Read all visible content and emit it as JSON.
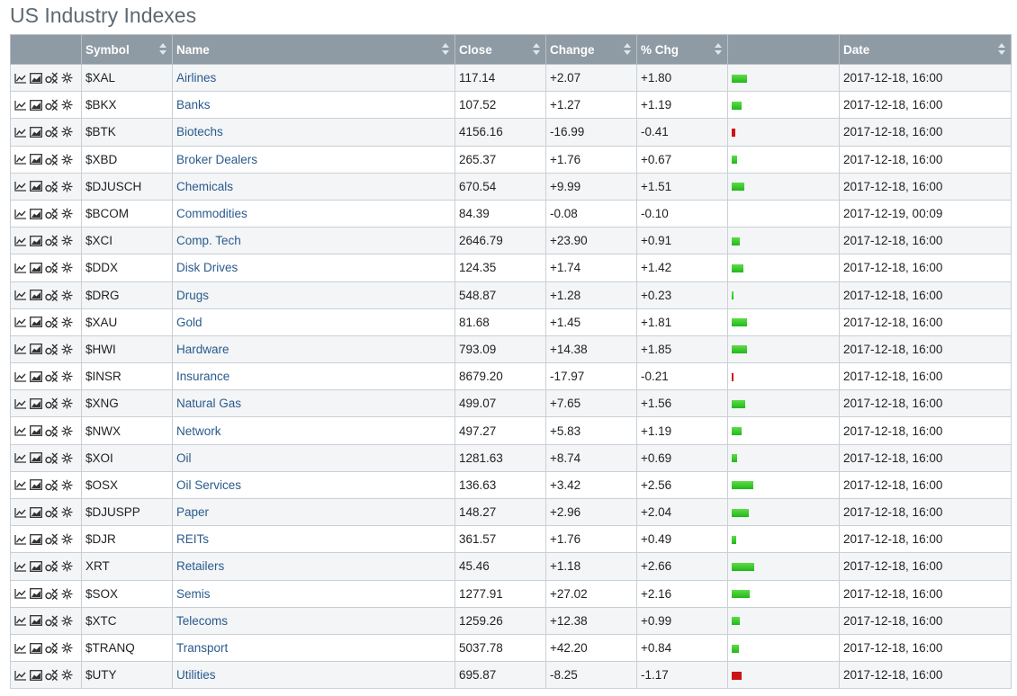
{
  "title": "US Industry Indexes",
  "columns": {
    "symbol": "Symbol",
    "name": "Name",
    "close": "Close",
    "change": "Change",
    "pct": "% Chg",
    "date": "Date"
  },
  "colors": {
    "positive": "#22bb1c",
    "negative": "#cc1414",
    "header_bg": "#8e9aa4",
    "link": "#2a5a8c"
  },
  "row_tool_icons": [
    "line-chart-icon",
    "area-chart-icon",
    "point-figure-icon",
    "seasonality-icon"
  ],
  "rows": [
    {
      "symbol": "$XAL",
      "name": "Airlines",
      "close": "117.14",
      "change": "+2.07",
      "pct": "+1.80",
      "date": "2017-12-18, 16:00"
    },
    {
      "symbol": "$BKX",
      "name": "Banks",
      "close": "107.52",
      "change": "+1.27",
      "pct": "+1.19",
      "date": "2017-12-18, 16:00"
    },
    {
      "symbol": "$BTK",
      "name": "Biotechs",
      "close": "4156.16",
      "change": "-16.99",
      "pct": "-0.41",
      "date": "2017-12-18, 16:00"
    },
    {
      "symbol": "$XBD",
      "name": "Broker Dealers",
      "close": "265.37",
      "change": "+1.76",
      "pct": "+0.67",
      "date": "2017-12-18, 16:00"
    },
    {
      "symbol": "$DJUSCH",
      "name": "Chemicals",
      "close": "670.54",
      "change": "+9.99",
      "pct": "+1.51",
      "date": "2017-12-18, 16:00"
    },
    {
      "symbol": "$BCOM",
      "name": "Commodities",
      "close": "84.39",
      "change": "-0.08",
      "pct": "-0.10",
      "date": "2017-12-19, 00:09"
    },
    {
      "symbol": "$XCI",
      "name": "Comp. Tech",
      "close": "2646.79",
      "change": "+23.90",
      "pct": "+0.91",
      "date": "2017-12-18, 16:00"
    },
    {
      "symbol": "$DDX",
      "name": "Disk Drives",
      "close": "124.35",
      "change": "+1.74",
      "pct": "+1.42",
      "date": "2017-12-18, 16:00"
    },
    {
      "symbol": "$DRG",
      "name": "Drugs",
      "close": "548.87",
      "change": "+1.28",
      "pct": "+0.23",
      "date": "2017-12-18, 16:00"
    },
    {
      "symbol": "$XAU",
      "name": "Gold",
      "close": "81.68",
      "change": "+1.45",
      "pct": "+1.81",
      "date": "2017-12-18, 16:00"
    },
    {
      "symbol": "$HWI",
      "name": "Hardware",
      "close": "793.09",
      "change": "+14.38",
      "pct": "+1.85",
      "date": "2017-12-18, 16:00"
    },
    {
      "symbol": "$INSR",
      "name": "Insurance",
      "close": "8679.20",
      "change": "-17.97",
      "pct": "-0.21",
      "date": "2017-12-18, 16:00"
    },
    {
      "symbol": "$XNG",
      "name": "Natural Gas",
      "close": "499.07",
      "change": "+7.65",
      "pct": "+1.56",
      "date": "2017-12-18, 16:00"
    },
    {
      "symbol": "$NWX",
      "name": "Network",
      "close": "497.27",
      "change": "+5.83",
      "pct": "+1.19",
      "date": "2017-12-18, 16:00"
    },
    {
      "symbol": "$XOI",
      "name": "Oil",
      "close": "1281.63",
      "change": "+8.74",
      "pct": "+0.69",
      "date": "2017-12-18, 16:00"
    },
    {
      "symbol": "$OSX",
      "name": "Oil Services",
      "close": "136.63",
      "change": "+3.42",
      "pct": "+2.56",
      "date": "2017-12-18, 16:00"
    },
    {
      "symbol": "$DJUSPP",
      "name": "Paper",
      "close": "148.27",
      "change": "+2.96",
      "pct": "+2.04",
      "date": "2017-12-18, 16:00"
    },
    {
      "symbol": "$DJR",
      "name": "REITs",
      "close": "361.57",
      "change": "+1.76",
      "pct": "+0.49",
      "date": "2017-12-18, 16:00"
    },
    {
      "symbol": "XRT",
      "name": "Retailers",
      "close": "45.46",
      "change": "+1.18",
      "pct": "+2.66",
      "date": "2017-12-18, 16:00"
    },
    {
      "symbol": "$SOX",
      "name": "Semis",
      "close": "1277.91",
      "change": "+27.02",
      "pct": "+2.16",
      "date": "2017-12-18, 16:00"
    },
    {
      "symbol": "$XTC",
      "name": "Telecoms",
      "close": "1259.26",
      "change": "+12.38",
      "pct": "+0.99",
      "date": "2017-12-18, 16:00"
    },
    {
      "symbol": "$TRANQ",
      "name": "Transport",
      "close": "5037.78",
      "change": "+42.20",
      "pct": "+0.84",
      "date": "2017-12-18, 16:00"
    },
    {
      "symbol": "$UTY",
      "name": "Utilities",
      "close": "695.87",
      "change": "-8.25",
      "pct": "-1.17",
      "date": "2017-12-18, 16:00"
    }
  ]
}
